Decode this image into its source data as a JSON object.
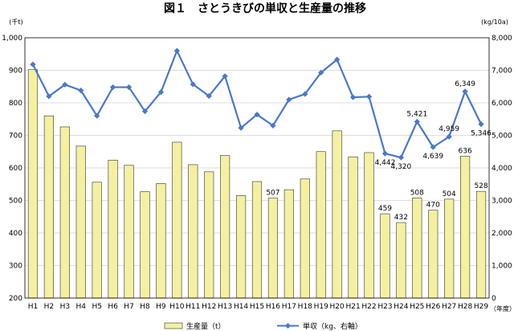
{
  "chart_data": {
    "type": "bar",
    "title": "図１　さとうきびの単収と生産量の推移",
    "categories": [
      "H1",
      "H2",
      "H3",
      "H4",
      "H5",
      "H6",
      "H7",
      "H8",
      "H9",
      "H10",
      "H11",
      "H12",
      "H13",
      "H14",
      "H15",
      "H16",
      "H17",
      "H18",
      "H19",
      "H20",
      "H21",
      "H22",
      "H23",
      "H24",
      "H25",
      "H26",
      "H27",
      "H28",
      "H29"
    ],
    "x_unit": "（年度）",
    "left_axis": {
      "unit": "(千t)",
      "ylim": [
        200,
        1000
      ],
      "ticks": [
        "200",
        "300",
        "400",
        "500",
        "600",
        "700",
        "800",
        "900",
        "1,000"
      ]
    },
    "right_axis": {
      "unit": "(kg/10a)",
      "ylim": [
        0,
        8000
      ],
      "ticks": [
        "0",
        "1,000",
        "2,000",
        "3,000",
        "4,000",
        "5,000",
        "6,000",
        "7,000",
        "8,000"
      ]
    },
    "series": [
      {
        "name": "生産量（t）",
        "type": "bar",
        "axis": "left",
        "color": "#f5f0a0",
        "values": [
          902,
          760,
          726,
          667,
          556,
          624,
          608,
          527,
          552,
          679,
          610,
          588,
          638,
          515,
          558,
          507,
          533,
          566,
          650,
          714,
          634,
          647,
          459,
          432,
          508,
          470,
          504,
          636,
          528
        ]
      },
      {
        "name": "単収（kg、右軸）",
        "type": "line",
        "axis": "right",
        "color": "#4a78c8",
        "values": [
          7180,
          6200,
          6560,
          6380,
          5600,
          6480,
          6480,
          5740,
          6330,
          7600,
          6570,
          6210,
          6820,
          5230,
          5640,
          5300,
          6100,
          6270,
          6930,
          7330,
          6170,
          6190,
          4442,
          4320,
          5421,
          4639,
          4959,
          6349,
          5346
        ]
      }
    ],
    "bar_labels": [
      {
        "index": 15,
        "text": "507"
      },
      {
        "index": 22,
        "text": "459"
      },
      {
        "index": 23,
        "text": "432"
      },
      {
        "index": 24,
        "text": "508"
      },
      {
        "index": 25,
        "text": "470"
      },
      {
        "index": 26,
        "text": "504"
      },
      {
        "index": 27,
        "text": "636"
      },
      {
        "index": 28,
        "text": "528"
      }
    ],
    "line_labels": [
      {
        "index": 22,
        "text": "4,442",
        "pos": "below"
      },
      {
        "index": 23,
        "text": "4,320",
        "pos": "below"
      },
      {
        "index": 24,
        "text": "5,421",
        "pos": "above"
      },
      {
        "index": 25,
        "text": "4,639",
        "pos": "below"
      },
      {
        "index": 26,
        "text": "4,959",
        "pos": "above"
      },
      {
        "index": 27,
        "text": "6,349",
        "pos": "above"
      },
      {
        "index": 28,
        "text": "5,346",
        "pos": "below"
      }
    ],
    "legend_position": "bottom",
    "grid": true
  }
}
